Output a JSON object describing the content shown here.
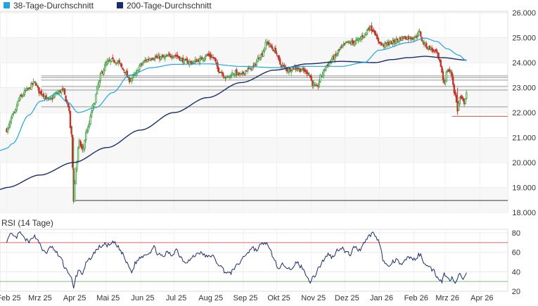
{
  "chart_data": [
    {
      "type": "candlestick",
      "legend": [
        {
          "name": "38-Tage-Durchschnitt",
          "color": "#1ea6e0"
        },
        {
          "name": "200-Tage-Durchschnitt",
          "color": "#1a2c6b"
        }
      ],
      "legend_placement": "top-left",
      "y_axis_side": "right",
      "ylim": [
        18000,
        26000
      ],
      "y_ticks": [
        "18.000",
        "19.000",
        "20.000",
        "21.000",
        "22.000",
        "23.000",
        "24.000",
        "25.000",
        "26.000"
      ],
      "y_tick_values": [
        18000,
        19000,
        20000,
        21000,
        22000,
        23000,
        24000,
        25000,
        26000
      ],
      "x_ticks": [
        "Feb 25",
        "Mrz 25",
        "Apr 25",
        "Mai 25",
        "Jun 25",
        "Jul 25",
        "Aug 25",
        "Sep 25",
        "Okt 25",
        "Nov 25",
        "Dez 25",
        "Jan 26",
        "Feb 26",
        "Mrz 26",
        "Apr 26"
      ],
      "x_tick_days": [
        0,
        28,
        59,
        89,
        120,
        150,
        181,
        212,
        242,
        273,
        303,
        334,
        365,
        393,
        424
      ],
      "x_range_days": [
        -6,
        449
      ],
      "grid": true,
      "up_color": "#3a9a3a",
      "down_color": "#c0392b",
      "horizontal_lines": [
        {
          "value": 23470,
          "color": "#999999",
          "x_start_day": 31
        },
        {
          "value": 23400,
          "color": "#999999",
          "x_start_day": 31
        },
        {
          "value": 23300,
          "color": "#999999",
          "x_start_day": 31
        },
        {
          "value": 23050,
          "color": "#999999",
          "x_start_day": 31
        },
        {
          "value": 22900,
          "color": "#999999",
          "x_start_day": 31
        },
        {
          "value": 22230,
          "color": "#999999",
          "x_start_day": 31
        },
        {
          "value": 21850,
          "color": "#e05050",
          "x_start_day": 399
        },
        {
          "value": 18480,
          "color": "#333333",
          "x_start_day": 61
        }
      ],
      "sma38_anchors": [
        [
          0,
          20570
        ],
        [
          5,
          20750
        ],
        [
          20,
          21900
        ],
        [
          30,
          22450
        ],
        [
          45,
          22750
        ],
        [
          55,
          22400
        ],
        [
          64,
          22000
        ],
        [
          80,
          22200
        ],
        [
          95,
          22800
        ],
        [
          110,
          23500
        ],
        [
          130,
          23800
        ],
        [
          150,
          23930
        ],
        [
          180,
          23950
        ],
        [
          210,
          23850
        ],
        [
          240,
          23800
        ],
        [
          270,
          23850
        ],
        [
          300,
          23850
        ],
        [
          320,
          24000
        ],
        [
          334,
          24500
        ],
        [
          360,
          24800
        ],
        [
          375,
          24980
        ],
        [
          385,
          24850
        ],
        [
          395,
          24550
        ],
        [
          405,
          24300
        ],
        [
          412,
          24080
        ]
      ],
      "sma200_anchors": [
        [
          0,
          19000
        ],
        [
          30,
          19500
        ],
        [
          60,
          20000
        ],
        [
          90,
          20600
        ],
        [
          120,
          21300
        ],
        [
          150,
          22000
        ],
        [
          180,
          22600
        ],
        [
          210,
          23200
        ],
        [
          240,
          23700
        ],
        [
          270,
          23950
        ],
        [
          300,
          24050
        ],
        [
          330,
          24000
        ],
        [
          345,
          24120
        ],
        [
          360,
          24200
        ],
        [
          375,
          24250
        ],
        [
          390,
          24200
        ],
        [
          412,
          24100
        ]
      ],
      "price_anchors": [
        [
          0,
          21300
        ],
        [
          6,
          21900
        ],
        [
          12,
          22600
        ],
        [
          18,
          22900
        ],
        [
          25,
          23200
        ],
        [
          30,
          22800
        ],
        [
          38,
          22500
        ],
        [
          46,
          22800
        ],
        [
          50,
          22900
        ],
        [
          55,
          22300
        ],
        [
          58,
          21100
        ],
        [
          60,
          18500
        ],
        [
          62,
          19800
        ],
        [
          65,
          20800
        ],
        [
          68,
          20500
        ],
        [
          72,
          21300
        ],
        [
          78,
          22300
        ],
        [
          82,
          23100
        ],
        [
          85,
          23600
        ],
        [
          90,
          24000
        ],
        [
          95,
          24100
        ],
        [
          100,
          24000
        ],
        [
          105,
          23700
        ],
        [
          110,
          23300
        ],
        [
          115,
          23500
        ],
        [
          120,
          23900
        ],
        [
          125,
          24100
        ],
        [
          130,
          24200
        ],
        [
          140,
          24200
        ],
        [
          150,
          24300
        ],
        [
          160,
          24050
        ],
        [
          165,
          24000
        ],
        [
          172,
          24100
        ],
        [
          180,
          24300
        ],
        [
          185,
          24200
        ],
        [
          190,
          23700
        ],
        [
          197,
          23400
        ],
        [
          204,
          23600
        ],
        [
          210,
          23500
        ],
        [
          215,
          23700
        ],
        [
          220,
          23800
        ],
        [
          228,
          24300
        ],
        [
          233,
          24800
        ],
        [
          240,
          24500
        ],
        [
          246,
          23900
        ],
        [
          252,
          23700
        ],
        [
          258,
          23800
        ],
        [
          265,
          23700
        ],
        [
          270,
          23600
        ],
        [
          275,
          23100
        ],
        [
          278,
          23000
        ],
        [
          282,
          23500
        ],
        [
          287,
          23900
        ],
        [
          293,
          24200
        ],
        [
          300,
          24600
        ],
        [
          305,
          24800
        ],
        [
          310,
          24800
        ],
        [
          315,
          24900
        ],
        [
          320,
          25100
        ],
        [
          325,
          25400
        ],
        [
          329,
          25300
        ],
        [
          332,
          24900
        ],
        [
          337,
          24700
        ],
        [
          345,
          24800
        ],
        [
          350,
          24900
        ],
        [
          355,
          25000
        ],
        [
          360,
          25000
        ],
        [
          365,
          25000
        ],
        [
          370,
          25200
        ],
        [
          373,
          24800
        ],
        [
          378,
          24600
        ],
        [
          385,
          24400
        ],
        [
          388,
          24000
        ],
        [
          392,
          23200
        ],
        [
          395,
          23700
        ],
        [
          398,
          23600
        ],
        [
          402,
          22700
        ],
        [
          404,
          22100
        ],
        [
          406,
          22600
        ],
        [
          410,
          22400
        ],
        [
          412,
          22800
        ]
      ],
      "candle_step_days": 1,
      "last_candle_day": 412
    },
    {
      "type": "line",
      "title": "RSI (14 Tage)",
      "ylim": [
        20,
        85
      ],
      "y_ticks": [
        "20",
        "40",
        "60",
        "80"
      ],
      "y_tick_values": [
        20,
        40,
        60,
        80
      ],
      "y_axis_side": "right",
      "reference_lines": [
        {
          "value": 70,
          "color": "#e06666"
        },
        {
          "value": 30,
          "color": "#7cc47c"
        }
      ],
      "series_color": "#1a2c6b",
      "rsi_anchors": [
        [
          0,
          72
        ],
        [
          4,
          78
        ],
        [
          8,
          75
        ],
        [
          12,
          80
        ],
        [
          16,
          74
        ],
        [
          20,
          70
        ],
        [
          24,
          77
        ],
        [
          28,
          73
        ],
        [
          32,
          62
        ],
        [
          36,
          60
        ],
        [
          40,
          66
        ],
        [
          44,
          60
        ],
        [
          48,
          55
        ],
        [
          52,
          45
        ],
        [
          55,
          40
        ],
        [
          58,
          33
        ],
        [
          60,
          22
        ],
        [
          62,
          35
        ],
        [
          65,
          42
        ],
        [
          68,
          38
        ],
        [
          72,
          50
        ],
        [
          76,
          55
        ],
        [
          80,
          62
        ],
        [
          84,
          66
        ],
        [
          88,
          68
        ],
        [
          92,
          67
        ],
        [
          96,
          70
        ],
        [
          100,
          65
        ],
        [
          104,
          58
        ],
        [
          108,
          48
        ],
        [
          112,
          40
        ],
        [
          116,
          50
        ],
        [
          120,
          55
        ],
        [
          124,
          58
        ],
        [
          128,
          60
        ],
        [
          132,
          65
        ],
        [
          136,
          58
        ],
        [
          140,
          55
        ],
        [
          144,
          60
        ],
        [
          148,
          57
        ],
        [
          152,
          63
        ],
        [
          156,
          55
        ],
        [
          160,
          50
        ],
        [
          164,
          52
        ],
        [
          168,
          56
        ],
        [
          172,
          60
        ],
        [
          176,
          58
        ],
        [
          180,
          55
        ],
        [
          184,
          57
        ],
        [
          188,
          50
        ],
        [
          192,
          45
        ],
        [
          196,
          40
        ],
        [
          200,
          38
        ],
        [
          204,
          44
        ],
        [
          208,
          48
        ],
        [
          212,
          55
        ],
        [
          216,
          60
        ],
        [
          220,
          65
        ],
        [
          224,
          62
        ],
        [
          228,
          68
        ],
        [
          232,
          70
        ],
        [
          236,
          62
        ],
        [
          240,
          52
        ],
        [
          244,
          42
        ],
        [
          248,
          48
        ],
        [
          252,
          45
        ],
        [
          256,
          42
        ],
        [
          260,
          50
        ],
        [
          264,
          45
        ],
        [
          268,
          38
        ],
        [
          272,
          30
        ],
        [
          276,
          36
        ],
        [
          280,
          45
        ],
        [
          284,
          52
        ],
        [
          288,
          58
        ],
        [
          292,
          55
        ],
        [
          296,
          62
        ],
        [
          300,
          65
        ],
        [
          304,
          60
        ],
        [
          308,
          58
        ],
        [
          312,
          66
        ],
        [
          316,
          62
        ],
        [
          320,
          70
        ],
        [
          324,
          76
        ],
        [
          328,
          80
        ],
        [
          332,
          74
        ],
        [
          334,
          70
        ],
        [
          338,
          50
        ],
        [
          342,
          45
        ],
        [
          346,
          50
        ],
        [
          350,
          52
        ],
        [
          354,
          46
        ],
        [
          358,
          54
        ],
        [
          362,
          55
        ],
        [
          366,
          52
        ],
        [
          370,
          58
        ],
        [
          374,
          50
        ],
        [
          378,
          45
        ],
        [
          382,
          42
        ],
        [
          386,
          35
        ],
        [
          390,
          30
        ],
        [
          392,
          38
        ],
        [
          396,
          32
        ],
        [
          400,
          34
        ],
        [
          402,
          28
        ],
        [
          404,
          35
        ],
        [
          406,
          38
        ],
        [
          408,
          32
        ],
        [
          410,
          36
        ],
        [
          412,
          38
        ]
      ]
    }
  ]
}
